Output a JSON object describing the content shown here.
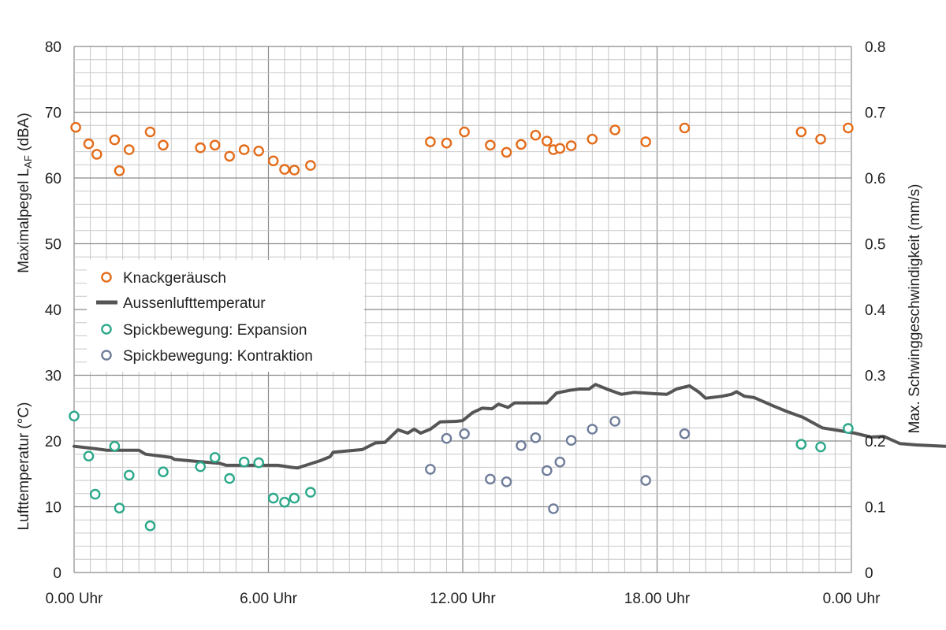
{
  "colors": {
    "knack": "#e36c1a",
    "temperature": "#555555",
    "expansion": "#2ba88a",
    "contraction": "#6f7d9a",
    "grid_minor": "#c8c8c8",
    "grid_major": "#8a8a8a"
  },
  "chart_data": {
    "type": "scatter",
    "title": "",
    "x_axis": {
      "unit": "hours",
      "range": [
        0,
        24
      ],
      "major_every": 6,
      "minor_every": 0.5,
      "ticks": [
        {
          "value": 0,
          "label": "0.00 Uhr"
        },
        {
          "value": 6,
          "label": "6.00 Uhr"
        },
        {
          "value": 12,
          "label": "12.00 Uhr"
        },
        {
          "value": 18,
          "label": "18.00 Uhr"
        },
        {
          "value": 24,
          "label": "0.00 Uhr"
        }
      ]
    },
    "y_axis_left_upper": {
      "label_main": "Maximalpegel L",
      "label_sub": "AF",
      "label_tail": " (dBA)",
      "range": [
        40,
        80
      ],
      "ticks": [
        40,
        50,
        60,
        70,
        80
      ]
    },
    "y_axis_left_lower": {
      "label": "Lufttemperatur  (°C)",
      "range": [
        0,
        40
      ],
      "ticks": [
        0,
        10,
        20,
        30
      ]
    },
    "y_axis_right": {
      "label": "Max. Schwinggeschwindigkeit (mm/s)",
      "range": [
        0,
        0.8
      ],
      "ticks": [
        "0",
        "0.1",
        "0.2",
        "0.3",
        "0.4",
        "0.5",
        "0.6",
        "0.7",
        "0.8"
      ]
    },
    "grid": true,
    "legend": {
      "placement": "left-middle",
      "entries": [
        {
          "label": "Knackgeräusch",
          "symbol": "circle",
          "series": "knack"
        },
        {
          "label": "Aussenlufttemperatur",
          "symbol": "line",
          "series": "temperature"
        },
        {
          "label": "Spickbewegung: Expansion",
          "symbol": "circle",
          "series": "expansion"
        },
        {
          "label": "Spickbewegung: Kontraktion",
          "symbol": "circle",
          "series": "contraction"
        }
      ]
    },
    "series": [
      {
        "name": "Knackgeräusch",
        "key": "knack",
        "kind": "scatter",
        "axis": "dBA",
        "points": [
          [
            0.05,
            67.7
          ],
          [
            0.45,
            65.2
          ],
          [
            0.7,
            63.6
          ],
          [
            1.25,
            65.8
          ],
          [
            1.4,
            61.1
          ],
          [
            1.7,
            64.3
          ],
          [
            2.35,
            67.0
          ],
          [
            2.75,
            65.0
          ],
          [
            3.9,
            64.6
          ],
          [
            4.35,
            65.0
          ],
          [
            4.8,
            63.3
          ],
          [
            5.25,
            64.3
          ],
          [
            5.7,
            64.1
          ],
          [
            6.15,
            62.6
          ],
          [
            6.5,
            61.3
          ],
          [
            6.8,
            61.2
          ],
          [
            7.3,
            61.9
          ],
          [
            11.0,
            65.5
          ],
          [
            11.5,
            65.3
          ],
          [
            12.05,
            67.0
          ],
          [
            12.85,
            65.0
          ],
          [
            13.35,
            63.9
          ],
          [
            13.8,
            65.1
          ],
          [
            14.25,
            66.5
          ],
          [
            14.6,
            65.6
          ],
          [
            14.8,
            64.3
          ],
          [
            15.0,
            64.5
          ],
          [
            15.35,
            64.9
          ],
          [
            16.0,
            65.9
          ],
          [
            16.7,
            67.3
          ],
          [
            17.65,
            65.5
          ],
          [
            18.85,
            67.6
          ],
          [
            22.45,
            67.0
          ],
          [
            23.05,
            65.9
          ],
          [
            23.9,
            67.6
          ]
        ]
      },
      {
        "name": "Aussenlufttemperatur",
        "key": "temperature",
        "kind": "line",
        "axis": "temp",
        "points": [
          [
            0,
            19.2
          ],
          [
            0.7,
            18.8
          ],
          [
            1.0,
            18.6
          ],
          [
            2.0,
            18.6
          ],
          [
            2.2,
            18.0
          ],
          [
            3.0,
            17.5
          ],
          [
            3.1,
            17.2
          ],
          [
            4.5,
            16.6
          ],
          [
            4.7,
            16.3
          ],
          [
            5.8,
            16.3
          ],
          [
            6.3,
            16.3
          ],
          [
            6.7,
            16.0
          ],
          [
            6.9,
            15.9
          ],
          [
            7.6,
            17.0
          ],
          [
            7.9,
            17.6
          ],
          [
            8.0,
            18.3
          ],
          [
            8.9,
            18.7
          ],
          [
            9.3,
            19.7
          ],
          [
            9.6,
            19.8
          ],
          [
            10.0,
            21.7
          ],
          [
            10.3,
            21.2
          ],
          [
            10.5,
            21.8
          ],
          [
            10.7,
            21.2
          ],
          [
            11.0,
            21.8
          ],
          [
            11.3,
            22.9
          ],
          [
            11.8,
            23.0
          ],
          [
            12.0,
            23.1
          ],
          [
            12.3,
            24.3
          ],
          [
            12.6,
            25.0
          ],
          [
            12.9,
            24.9
          ],
          [
            13.1,
            25.6
          ],
          [
            13.4,
            25.1
          ],
          [
            13.6,
            25.8
          ],
          [
            14.0,
            25.8
          ],
          [
            14.6,
            25.8
          ],
          [
            14.9,
            27.3
          ],
          [
            15.3,
            27.7
          ],
          [
            15.6,
            27.9
          ],
          [
            15.9,
            27.9
          ],
          [
            16.1,
            28.6
          ],
          [
            16.5,
            27.8
          ],
          [
            16.9,
            27.1
          ],
          [
            17.3,
            27.4
          ],
          [
            17.9,
            27.2
          ],
          [
            18.3,
            27.1
          ],
          [
            18.6,
            27.9
          ],
          [
            19.0,
            28.4
          ],
          [
            19.3,
            27.4
          ],
          [
            19.5,
            26.5
          ],
          [
            20.0,
            26.8
          ],
          [
            20.3,
            27.1
          ],
          [
            20.45,
            27.5
          ],
          [
            20.7,
            26.8
          ],
          [
            21.0,
            26.6
          ],
          [
            21.6,
            25.3
          ],
          [
            22.0,
            24.5
          ],
          [
            22.5,
            23.6
          ],
          [
            23.1,
            22.0
          ],
          [
            23.6,
            21.6
          ],
          [
            24.1,
            21.2
          ],
          [
            24.6,
            20.6
          ],
          [
            25.0,
            20.7
          ],
          [
            25.5,
            19.6
          ],
          [
            26.0,
            19.4
          ],
          [
            26.4,
            19.3
          ],
          [
            26.9,
            19.2
          ]
        ]
      },
      {
        "name": "Spickbewegung: Expansion",
        "key": "expansion",
        "kind": "scatter",
        "axis": "mms",
        "points": [
          [
            0.0,
            0.238
          ],
          [
            0.45,
            0.177
          ],
          [
            0.65,
            0.119
          ],
          [
            1.25,
            0.192
          ],
          [
            1.4,
            0.098
          ],
          [
            1.7,
            0.148
          ],
          [
            2.35,
            0.071
          ],
          [
            2.75,
            0.153
          ],
          [
            3.9,
            0.161
          ],
          [
            4.35,
            0.175
          ],
          [
            4.8,
            0.143
          ],
          [
            5.25,
            0.168
          ],
          [
            5.7,
            0.167
          ],
          [
            6.15,
            0.113
          ],
          [
            6.5,
            0.107
          ],
          [
            6.8,
            0.113
          ],
          [
            7.3,
            0.122
          ],
          [
            22.45,
            0.195
          ],
          [
            23.05,
            0.191
          ],
          [
            23.9,
            0.219
          ]
        ]
      },
      {
        "name": "Spickbewegung: Kontraktion",
        "key": "contraction",
        "kind": "scatter",
        "axis": "mms",
        "points": [
          [
            11.0,
            0.157
          ],
          [
            11.5,
            0.204
          ],
          [
            12.05,
            0.211
          ],
          [
            12.85,
            0.142
          ],
          [
            13.35,
            0.138
          ],
          [
            13.8,
            0.193
          ],
          [
            14.25,
            0.205
          ],
          [
            14.6,
            0.155
          ],
          [
            14.8,
            0.097
          ],
          [
            15.0,
            0.168
          ],
          [
            15.35,
            0.201
          ],
          [
            16.0,
            0.218
          ],
          [
            16.7,
            0.23
          ],
          [
            17.65,
            0.14
          ],
          [
            18.85,
            0.211
          ]
        ]
      }
    ]
  }
}
